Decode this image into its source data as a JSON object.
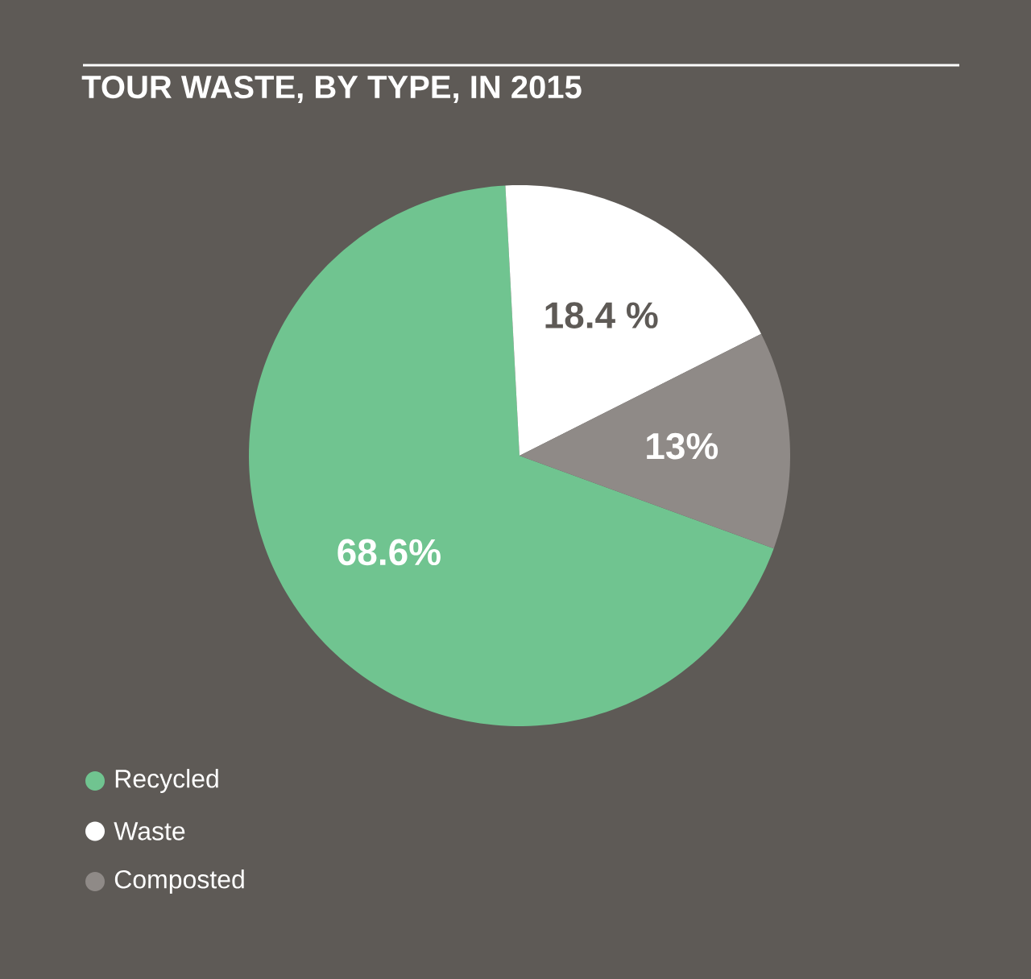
{
  "chart_data": {
    "type": "pie",
    "title": "TOUR WASTE, BY TYPE, IN 2015",
    "categories": [
      "Recycled",
      "Waste",
      "Composted"
    ],
    "values": [
      68.6,
      18.4,
      13
    ],
    "colors": [
      "#70c490",
      "#ffffff",
      "#8f8a87"
    ],
    "value_labels": [
      "68.6%",
      "18.4 %",
      "13%"
    ],
    "legend": "bottom left"
  }
}
